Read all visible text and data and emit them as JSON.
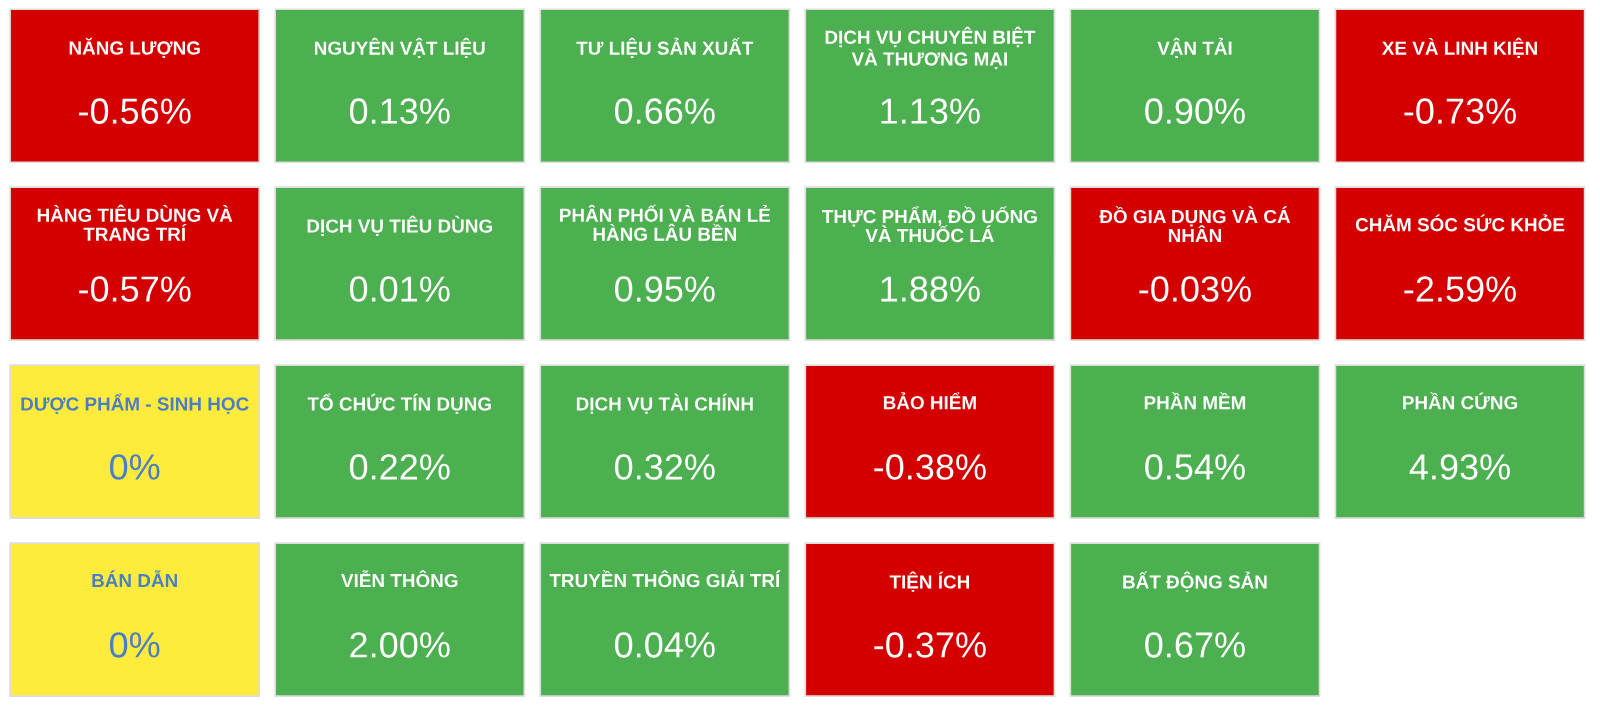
{
  "chart_data": {
    "type": "other",
    "categories": [
      "NĂNG LƯỢNG",
      "NGUYÊN VẬT LIỆU",
      "TƯ LIỆU SẢN XUẤT",
      "DỊCH VỤ CHUYÊN BIỆT\nVÀ THƯƠNG MẠI",
      "VẬN TẢI",
      "XE VÀ LINH KIỆN",
      "HÀNG TIÊU DÙNG VÀ\nTRANG TRÍ",
      "DỊCH VỤ TIÊU DÙNG",
      "PHÂN PHỐI VÀ BÁN LẺ\nHÀNG LÂU BỀN",
      "THỰC PHẨM, ĐỒ UỐNG\nVÀ THUỐC LÁ",
      "ĐỒ GIA DỤNG VÀ CÁ\nNHÂN",
      "CHĂM SÓC SỨC KHỎE",
      "DƯỢC PHẨM - SINH HỌC",
      "TỔ CHỨC TÍN DỤNG",
      "DỊCH VỤ TÀI CHÍNH",
      "BẢO HIỂM",
      "PHẦN MỀM",
      "PHẦN CỨNG",
      "BÁN DẪN",
      "VIỄN THÔNG",
      "TRUYỀN THÔNG GIẢI TRÍ",
      "TIỆN ÍCH",
      "BẤT ĐỘNG SẢN"
    ],
    "values": [
      -0.56,
      0.13,
      0.66,
      1.13,
      0.9,
      -0.73,
      -0.57,
      0.01,
      0.95,
      1.88,
      -0.03,
      -2.59,
      0,
      0.22,
      0.32,
      -0.38,
      0.54,
      4.93,
      0,
      2.0,
      0.04,
      -0.37,
      0.67
    ],
    "value_labels": [
      "-0.56%",
      "0.13%",
      "0.66%",
      "1.13%",
      "0.90%",
      "-0.73%",
      "-0.57%",
      "0.01%",
      "0.95%",
      "1.88%",
      "-0.03%",
      "-2.59%",
      "0%",
      "0.22%",
      "0.32%",
      "-0.38%",
      "0.54%",
      "4.93%",
      "0%",
      "2.00%",
      "0.04%",
      "-0.37%",
      "0.67%"
    ],
    "colors": [
      "#d40000",
      "#4caf50",
      "#4caf50",
      "#4caf50",
      "#4caf50",
      "#d40000",
      "#d40000",
      "#4caf50",
      "#4caf50",
      "#4caf50",
      "#d40000",
      "#d40000",
      "#ffeb3b",
      "#4caf50",
      "#4caf50",
      "#d40000",
      "#4caf50",
      "#4caf50",
      "#ffeb3b",
      "#4caf50",
      "#4caf50",
      "#d40000",
      "#4caf50"
    ]
  }
}
